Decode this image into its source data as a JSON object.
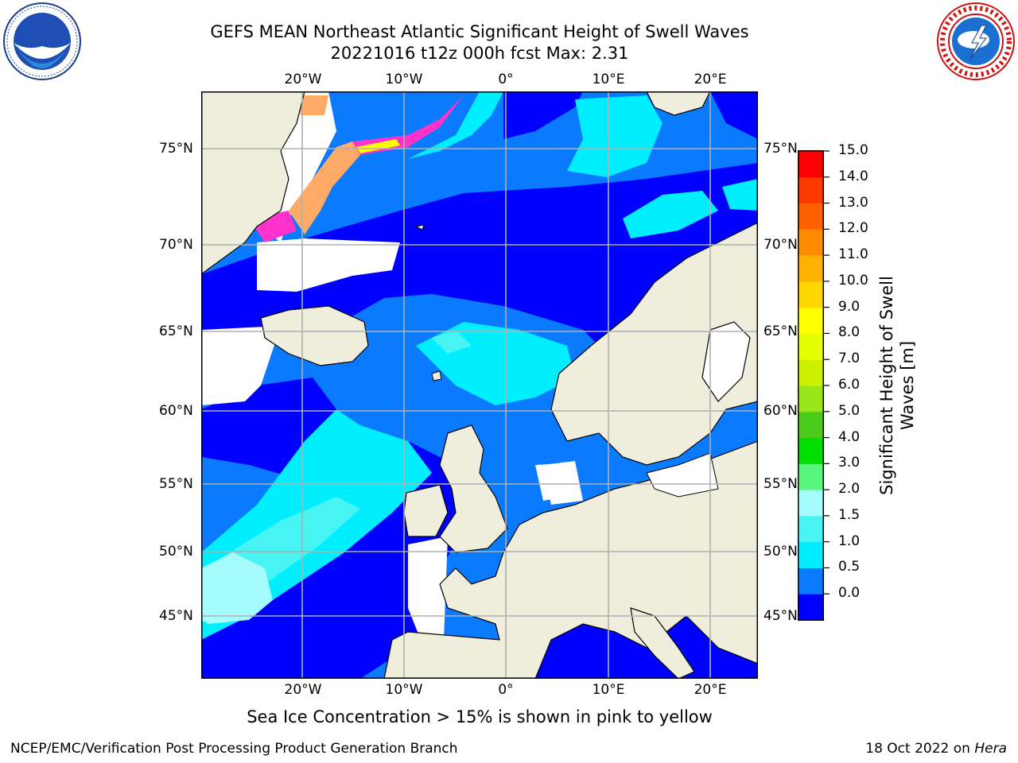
{
  "title_line1": "GEFS MEAN Northeast Atlantic Significant Height of Swell Waves",
  "title_line2": "20221016 t12z 000h fcst   Max: 2.31",
  "map": {
    "lon_labels_top": [
      "20°W",
      "10°W",
      "0°",
      "10°E",
      "20°E"
    ],
    "lon_labels_bottom": [
      "20°W",
      "10°W",
      "0°",
      "10°E",
      "20°E"
    ],
    "lat_labels_left": [
      "75°N",
      "70°N",
      "65°N",
      "60°N",
      "55°N",
      "50°N",
      "45°N"
    ],
    "lat_labels_right": [
      "75°N",
      "70°N",
      "65°N",
      "60°N",
      "55°N",
      "50°N",
      "45°N"
    ],
    "colors": {
      "land": "#efeddc",
      "no_data": "#ffffff",
      "band_0_0.5": "#0000ff",
      "band_0.5_1.0": "#0a7bff",
      "band_1.0_1.5": "#00eeff",
      "band_1.5_2.0": "#48f3f3",
      "band_2.0_3.0": "#a4fcfc",
      "sea_ice": [
        "#ff33cc",
        "#ffaa66",
        "#ffff00"
      ]
    }
  },
  "colorbar": {
    "title_line1": "Significant Height of Swell",
    "title_line2": "Waves [m]",
    "ticks": [
      "15.0",
      "14.0",
      "13.0",
      "12.0",
      "11.0",
      "10.0",
      "9.0",
      "8.0",
      "7.0",
      "6.0",
      "5.0",
      "4.0",
      "3.0",
      "2.0",
      "1.5",
      "1.0",
      "0.5",
      "0.0"
    ],
    "colors_bottom_to_top": [
      "#0000ff",
      "#0a7bff",
      "#00eeff",
      "#48f3f3",
      "#a4fcfc",
      "#56f77c",
      "#00e000",
      "#4ccc1a",
      "#99e61a",
      "#ccf000",
      "#e6ff00",
      "#ffff00",
      "#ffd700",
      "#ffb300",
      "#ff8c00",
      "#ff6000",
      "#ff3a00",
      "#ff0000"
    ]
  },
  "caption": "Sea Ice Concentration > 15% is shown in pink to yellow",
  "footer_left": "NCEP/EMC/Verification Post Processing Product Generation Branch",
  "footer_right_date": "18 Oct 2022 on ",
  "footer_right_host": "Hera"
}
